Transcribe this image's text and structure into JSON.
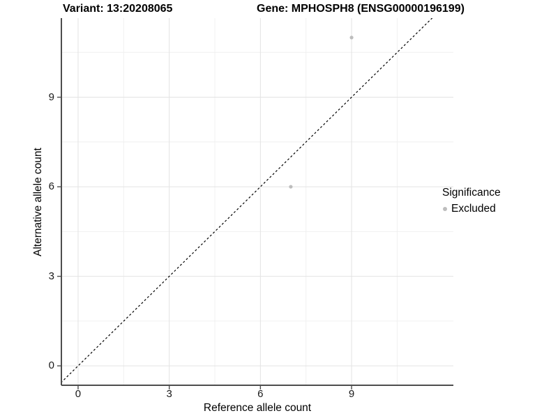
{
  "chart_data": {
    "type": "scatter",
    "title_left": "Variant: 13:20208065",
    "title_right": "Gene: MPHOSPH8 (ENSG00000196199)",
    "xlabel": "Reference allele count",
    "ylabel": "Alternative allele count",
    "x_ticks": [
      0,
      3,
      6,
      9
    ],
    "y_ticks": [
      0,
      3,
      6,
      9
    ],
    "x_minor_ticks": [
      1.5,
      4.5,
      7.5,
      10.5
    ],
    "y_minor_ticks": [
      1.5,
      4.5,
      7.5,
      10.5
    ],
    "xlim": [
      -0.55,
      12.35
    ],
    "ylim": [
      -0.65,
      11.65
    ],
    "grid": true,
    "identity_line": {
      "type": "dashed",
      "slope": 1,
      "intercept": 0,
      "color": "#000000"
    },
    "series": [
      {
        "name": "Excluded",
        "color": "#bdbdbd",
        "points": [
          {
            "x": 7,
            "y": 6
          },
          {
            "x": 9,
            "y": 11
          }
        ]
      }
    ],
    "legend": {
      "title": "Significance",
      "position": "right",
      "items": [
        {
          "label": "Excluded",
          "color": "#bdbdbd"
        }
      ]
    },
    "colors": {
      "background": "#ffffff",
      "point": "#bdbdbd",
      "grid_major": "#e3e3e3",
      "grid_minor": "#f0f0f0",
      "axis_line": "#4d4d4d",
      "tick_mark": "#4d4d4d",
      "text": "#000000"
    }
  }
}
